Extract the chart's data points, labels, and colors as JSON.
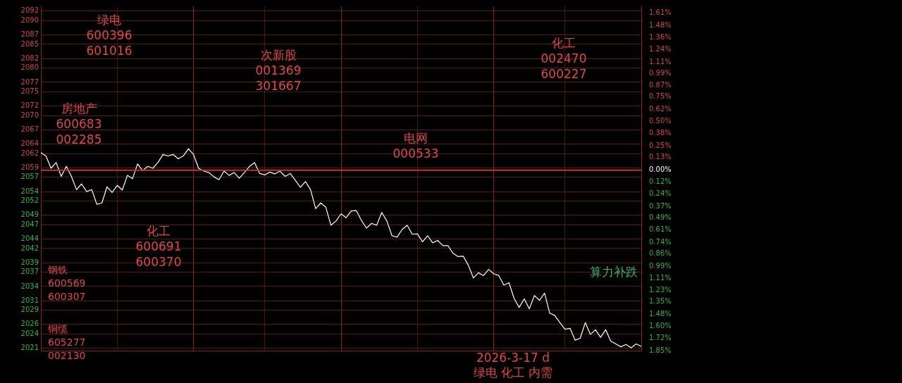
{
  "chart_data": {
    "type": "line",
    "categories": [
      null,
      null,
      null,
      null,
      null,
      null,
      null,
      null,
      null,
      null,
      null,
      null,
      null,
      null,
      null,
      null,
      null,
      null,
      null,
      null,
      null,
      null,
      null,
      null,
      null,
      null,
      null,
      null,
      null,
      null,
      null,
      null,
      null,
      null,
      null,
      null,
      null,
      null,
      null,
      null,
      null,
      null,
      null,
      null,
      null,
      null,
      null,
      null,
      null,
      null,
      null,
      null,
      null,
      null,
      null,
      null,
      null,
      null,
      null,
      null,
      null,
      null,
      null,
      null,
      null,
      null,
      null,
      null,
      null,
      null,
      null,
      null,
      null,
      null,
      null,
      null,
      null,
      null,
      null,
      null,
      null,
      null,
      null,
      null,
      null,
      null,
      null,
      null,
      null,
      null,
      null,
      null,
      null,
      null,
      null,
      null,
      null,
      null,
      null,
      null,
      null,
      null,
      null,
      null,
      null,
      null,
      null,
      null,
      null,
      null,
      null,
      null,
      null,
      null,
      null,
      null,
      null,
      null,
      null
    ],
    "series": [
      {
        "color": "#ffffff",
        "values": [
          2062.2,
          2061.5,
          2058.9,
          2060.1,
          2057.2,
          2059.3,
          2057.2,
          2054.4,
          2055.6,
          2054.0,
          2054.4,
          2051.3,
          2051.6,
          2055.0,
          2053.8,
          2055.3,
          2054.3,
          2057.4,
          2056.7,
          2059.8,
          2058.4,
          2059.3,
          2058.9,
          2060.1,
          2061.8,
          2061.5,
          2061.8,
          2060.9,
          2061.5,
          2063.0,
          2061.8,
          2058.9,
          2058.3,
          2058.0,
          2057.1,
          2056.5,
          2058.3,
          2057.4,
          2058.0,
          2056.8,
          2058.0,
          2059.3,
          2060.1,
          2057.8,
          2057.5,
          2058.1,
          2057.7,
          2058.3,
          2057.2,
          2057.8,
          2056.4,
          2054.9,
          2056.1,
          2054.4,
          2050.4,
          2051.6,
          2050.7,
          2046.9,
          2047.8,
          2049.3,
          2048.5,
          2049.9,
          2050.0,
          2047.9,
          2046.3,
          2047.3,
          2046.9,
          2049.6,
          2047.8,
          2044.7,
          2044.4,
          2046.0,
          2046.9,
          2045.0,
          2045.1,
          2043.4,
          2044.7,
          2043.2,
          2043.7,
          2042.6,
          2042.6,
          2041.0,
          2040.3,
          2040.4,
          2038.5,
          2035.8,
          2036.9,
          2036.3,
          2037.6,
          2036.7,
          2036.3,
          2034.3,
          2034.8,
          2031.5,
          2029.6,
          2031.4,
          2029.3,
          2032.1,
          2031.1,
          2032.6,
          2028.4,
          2027.9,
          2026.4,
          2025.0,
          2025.2,
          2022.7,
          2023.1,
          2026.4,
          2023.9,
          2024.9,
          2023.3,
          2024.9,
          2022.5,
          2021.9,
          2021.3,
          2021.8,
          2021.1,
          2021.9,
          2021.4
        ]
      }
    ],
    "ylim": [
      2020.5,
      2093.0
    ],
    "yticks": [
      {
        "value": 2021,
        "label": "2021"
      },
      {
        "value": 2024,
        "label": "2024"
      },
      {
        "value": 2026,
        "label": "2026"
      },
      {
        "value": 2029,
        "label": "2029"
      },
      {
        "value": 2031,
        "label": "2031"
      },
      {
        "value": 2034,
        "label": "2034"
      },
      {
        "value": 2037,
        "label": "2037"
      },
      {
        "value": 2039,
        "label": "2039"
      },
      {
        "value": 2042,
        "label": "2042"
      },
      {
        "value": 2044,
        "label": "2044"
      },
      {
        "value": 2047,
        "label": "2047"
      },
      {
        "value": 2049,
        "label": "2049"
      },
      {
        "value": 2052,
        "label": "2052"
      },
      {
        "value": 2054,
        "label": "2054"
      },
      {
        "value": 2057,
        "label": "2057"
      },
      {
        "value": 2059,
        "label": "2059"
      },
      {
        "value": 2062,
        "label": "2062"
      },
      {
        "value": 2064,
        "label": "2064"
      },
      {
        "value": 2067,
        "label": "2067"
      },
      {
        "value": 2070,
        "label": "2070"
      },
      {
        "value": 2072,
        "label": "2072"
      },
      {
        "value": 2075,
        "label": "2075"
      },
      {
        "value": 2077,
        "label": "2077"
      },
      {
        "value": 2080,
        "label": "2080"
      },
      {
        "value": 2082,
        "label": "2082"
      },
      {
        "value": 2085,
        "label": "2085"
      },
      {
        "value": 2087,
        "label": "2087"
      },
      {
        "value": 2090,
        "label": "2090"
      },
      {
        "value": 2092,
        "label": "2092"
      }
    ],
    "y2lim": [
      -1.85,
      1.68
    ],
    "y2ticks": [
      {
        "value": -1.85,
        "label": "1.85%"
      },
      {
        "value": -1.72,
        "label": "1.72%"
      },
      {
        "value": -1.6,
        "label": "1.60%"
      },
      {
        "value": -1.48,
        "label": "1.48%"
      },
      {
        "value": -1.35,
        "label": "1.35%"
      },
      {
        "value": -1.23,
        "label": "1.23%"
      },
      {
        "value": -1.11,
        "label": "1.11%"
      },
      {
        "value": -0.99,
        "label": "0.99%"
      },
      {
        "value": -0.86,
        "label": "0.86%"
      },
      {
        "value": -0.74,
        "label": "0.74%"
      },
      {
        "value": -0.61,
        "label": "0.61%"
      },
      {
        "value": -0.49,
        "label": "0.49%"
      },
      {
        "value": -0.37,
        "label": "0.37%"
      },
      {
        "value": -0.24,
        "label": "0.24%"
      },
      {
        "value": -0.12,
        "label": "0.12%"
      },
      {
        "value": 0,
        "label": "0.00%"
      },
      {
        "value": 0.13,
        "label": "0.13%"
      },
      {
        "value": 0.25,
        "label": "0.25%"
      },
      {
        "value": 0.38,
        "label": "0.38%"
      },
      {
        "value": 0.5,
        "label": "0.50%"
      },
      {
        "value": 0.62,
        "label": "0.62%"
      },
      {
        "value": 0.75,
        "label": "0.75%"
      },
      {
        "value": 0.87,
        "label": "0.87%"
      },
      {
        "value": 0.99,
        "label": "0.99%"
      },
      {
        "value": 1.11,
        "label": "1.11%"
      },
      {
        "value": 1.24,
        "label": "1.24%"
      },
      {
        "value": 1.36,
        "label": "1.36%"
      },
      {
        "value": 1.48,
        "label": "1.48%"
      },
      {
        "value": 1.61,
        "label": "1.61%"
      }
    ],
    "ref_lines": [
      {
        "axis": "y",
        "value": 2058.5,
        "color": "#c83232"
      }
    ],
    "grid": true,
    "tick_labels": "y",
    "marker": "none",
    "line_style": "solid",
    "annotations": [
      "绿电\n600396\n601016",
      "次新股\n001369\n301667",
      "化工\n002470\n600227",
      "房地产\n600683\n002285",
      "电网\n000533",
      "化工\n600691\n600370",
      "钢铁\n600569\n600307",
      "铜缆\n605277\n002130",
      "算力补跌",
      "2026-3-17 d",
      "绿电 化工 内需"
    ]
  }
}
